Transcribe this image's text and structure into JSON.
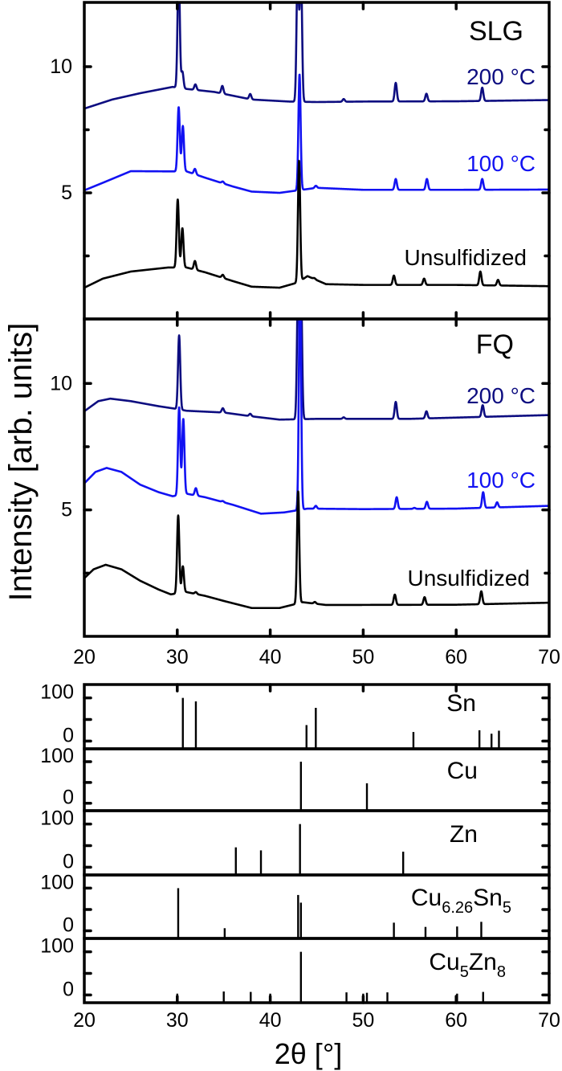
{
  "chart_data": {
    "type": "line",
    "xlabel": "2θ [°]",
    "ylabel": "Intensity [arb. units]",
    "xlim": [
      20,
      70
    ],
    "x_ticks": [
      "20",
      "30",
      "40",
      "50",
      "60",
      "70"
    ],
    "grid": false,
    "panels": [
      {
        "label": "SLG",
        "ylim": [
          0,
          12.55
        ],
        "y_ticks": [
          "5",
          "10"
        ],
        "series": [
          {
            "name": "200 °C",
            "color": "#0d0d80",
            "baseline": [
              [
                20,
                8.34
              ],
              [
                23,
                8.7
              ],
              [
                26,
                8.95
              ],
              [
                29.5,
                9.2
              ],
              [
                31,
                9.12
              ],
              [
                34,
                9.0
              ],
              [
                36,
                8.85
              ],
              [
                38,
                8.7
              ],
              [
                42,
                8.62
              ],
              [
                45,
                8.6
              ],
              [
                50,
                8.62
              ],
              [
                60,
                8.63
              ],
              [
                70,
                8.68
              ]
            ],
            "peaks": [
              [
                30.15,
                14
              ],
              [
                30.55,
                9.8
              ],
              [
                31.95,
                9.3
              ],
              [
                34.85,
                9.24
              ],
              [
                37.85,
                8.92
              ],
              [
                42.95,
                14
              ],
              [
                43.3,
                14
              ],
              [
                47.9,
                8.72
              ],
              [
                53.5,
                9.36
              ],
              [
                56.8,
                8.93
              ],
              [
                62.8,
                9.17
              ]
            ]
          },
          {
            "name": "100 °C",
            "color": "#1212f2",
            "baseline": [
              [
                20,
                5.1
              ],
              [
                22,
                5.4
              ],
              [
                25,
                5.86
              ],
              [
                29.5,
                5.85
              ],
              [
                31,
                5.85
              ],
              [
                33,
                5.6
              ],
              [
                36,
                5.25
              ],
              [
                38,
                5.05
              ],
              [
                41,
                5.0
              ],
              [
                43,
                5.1
              ],
              [
                45,
                5.2
              ],
              [
                50,
                5.12
              ],
              [
                60,
                5.12
              ],
              [
                70,
                5.13
              ]
            ],
            "peaks": [
              [
                30.15,
                8.4
              ],
              [
                30.6,
                7.65
              ],
              [
                31.9,
                5.95
              ],
              [
                34.9,
                5.45
              ],
              [
                43.15,
                9.7
              ],
              [
                44.9,
                5.28
              ],
              [
                53.5,
                5.55
              ],
              [
                56.85,
                5.55
              ],
              [
                62.8,
                5.55
              ]
            ]
          },
          {
            "name": "Unsulfidized",
            "color": "#000000",
            "baseline": [
              [
                20,
                1.24
              ],
              [
                22,
                1.6
              ],
              [
                25,
                1.88
              ],
              [
                29,
                2.04
              ],
              [
                31,
                2.04
              ],
              [
                33,
                1.85
              ],
              [
                36,
                1.5
              ],
              [
                38,
                1.28
              ],
              [
                41,
                1.24
              ],
              [
                43,
                1.45
              ],
              [
                44,
                1.7
              ],
              [
                46,
                1.38
              ],
              [
                50,
                1.35
              ],
              [
                60,
                1.35
              ],
              [
                70,
                1.3
              ]
            ],
            "peaks": [
              [
                30.05,
                4.74
              ],
              [
                30.55,
                3.6
              ],
              [
                31.9,
                2.3
              ],
              [
                34.9,
                1.75
              ],
              [
                43.1,
                6.27
              ],
              [
                44.75,
                1.62
              ],
              [
                53.3,
                1.72
              ],
              [
                56.55,
                1.6
              ],
              [
                62.6,
                1.88
              ],
              [
                64.5,
                1.55
              ]
            ]
          }
        ]
      },
      {
        "label": "FQ",
        "ylim": [
          0,
          12.55
        ],
        "y_ticks": [
          "5",
          "10"
        ],
        "series": [
          {
            "name": "200 °C",
            "color": "#0d0d80",
            "baseline": [
              [
                20,
                8.9
              ],
              [
                21.5,
                9.3
              ],
              [
                22.8,
                9.4
              ],
              [
                25,
                9.3
              ],
              [
                28,
                9.1
              ],
              [
                29.8,
                9.0
              ],
              [
                31,
                8.92
              ],
              [
                35,
                8.85
              ],
              [
                38,
                8.7
              ],
              [
                41,
                8.57
              ],
              [
                45,
                8.6
              ],
              [
                55,
                8.6
              ],
              [
                70,
                8.75
              ]
            ],
            "peaks": [
              [
                30.2,
                11.9
              ],
              [
                34.9,
                9.02
              ],
              [
                37.85,
                8.8
              ],
              [
                43.0,
                14
              ],
              [
                43.3,
                14
              ],
              [
                47.9,
                8.66
              ],
              [
                53.5,
                9.27
              ],
              [
                56.8,
                8.9
              ],
              [
                62.85,
                9.14
              ]
            ]
          },
          {
            "name": "100 °C",
            "color": "#1212f2",
            "baseline": [
              [
                20,
                6.05
              ],
              [
                21.2,
                6.5
              ],
              [
                22.4,
                6.66
              ],
              [
                24,
                6.5
              ],
              [
                26,
                6.0
              ],
              [
                28,
                5.7
              ],
              [
                29.5,
                5.54
              ],
              [
                31,
                5.64
              ],
              [
                33,
                5.5
              ],
              [
                36,
                5.2
              ],
              [
                39,
                4.85
              ],
              [
                41.5,
                4.9
              ],
              [
                44,
                5.05
              ],
              [
                50,
                5.03
              ],
              [
                60,
                5.05
              ],
              [
                70,
                5.16
              ]
            ],
            "peaks": [
              [
                30.2,
                9.05
              ],
              [
                30.65,
                8.6
              ],
              [
                32.0,
                5.86
              ],
              [
                34.9,
                5.35
              ],
              [
                43.2,
                14
              ],
              [
                44.9,
                5.16
              ],
              [
                53.6,
                5.5
              ],
              [
                55.5,
                5.08
              ],
              [
                56.85,
                5.32
              ],
              [
                62.9,
                5.7
              ],
              [
                64.4,
                5.3
              ]
            ]
          },
          {
            "name": "Unsulfidized",
            "color": "#000000",
            "baseline": [
              [
                20,
                2.3
              ],
              [
                21,
                2.65
              ],
              [
                22.3,
                2.83
              ],
              [
                24,
                2.65
              ],
              [
                26,
                2.2
              ],
              [
                28,
                1.85
              ],
              [
                29.3,
                1.66
              ],
              [
                31,
                1.75
              ],
              [
                33,
                1.6
              ],
              [
                35,
                1.4
              ],
              [
                38,
                1.12
              ],
              [
                41,
                1.12
              ],
              [
                43.5,
                1.35
              ],
              [
                46,
                1.24
              ],
              [
                60,
                1.25
              ],
              [
                70,
                1.33
              ]
            ],
            "peaks": [
              [
                30.1,
                4.78
              ],
              [
                30.6,
                2.77
              ],
              [
                32.0,
                1.75
              ],
              [
                43.0,
                5.73
              ],
              [
                44.8,
                1.36
              ],
              [
                53.4,
                1.65
              ],
              [
                56.6,
                1.55
              ],
              [
                62.7,
                1.78
              ]
            ]
          }
        ]
      }
    ],
    "reference_patterns": {
      "type": "bar",
      "ylim": [
        -18,
        131
      ],
      "y_ticks": [
        "100",
        "0"
      ],
      "patterns": [
        {
          "label_parts": [
            {
              "text": "Sn",
              "sub": false
            }
          ],
          "sticks": [
            [
              30.6,
              100
            ],
            [
              32.0,
              92
            ],
            [
              43.9,
              37
            ],
            [
              44.9,
              77
            ],
            [
              55.4,
              21
            ],
            [
              62.5,
              25
            ],
            [
              63.8,
              17
            ],
            [
              64.6,
              24
            ]
          ]
        },
        {
          "label_parts": [
            {
              "text": "Cu",
              "sub": false
            }
          ],
          "sticks": [
            [
              43.3,
              100
            ],
            [
              50.4,
              48
            ]
          ]
        },
        {
          "label_parts": [
            {
              "text": "Zn",
              "sub": false
            }
          ],
          "sticks": [
            [
              36.3,
              46
            ],
            [
              39.0,
              39
            ],
            [
              43.2,
              100
            ],
            [
              54.3,
              36
            ]
          ]
        },
        {
          "label_parts": [
            {
              "text": "Cu",
              "sub": false
            },
            {
              "text": "6.26",
              "sub": true
            },
            {
              "text": "Sn",
              "sub": false
            },
            {
              "text": "5",
              "sub": true
            }
          ],
          "sticks": [
            [
              30.1,
              100
            ],
            [
              35.1,
              6
            ],
            [
              43.0,
              84
            ],
            [
              43.3,
              66
            ],
            [
              53.3,
              19
            ],
            [
              56.7,
              9
            ],
            [
              60.1,
              10
            ],
            [
              62.7,
              21
            ]
          ]
        },
        {
          "label_parts": [
            {
              "text": "Cu",
              "sub": false
            },
            {
              "text": "5",
              "sub": true
            },
            {
              "text": "Zn",
              "sub": false
            },
            {
              "text": "8",
              "sub": true
            }
          ],
          "sticks": [
            [
              30.0,
              3
            ],
            [
              35.0,
              8
            ],
            [
              37.9,
              7
            ],
            [
              40.0,
              3
            ],
            [
              43.3,
              100
            ],
            [
              48.2,
              6
            ],
            [
              50.0,
              3
            ],
            [
              50.4,
              5
            ],
            [
              52.6,
              6
            ],
            [
              60.1,
              3
            ],
            [
              62.9,
              7
            ]
          ]
        }
      ]
    }
  }
}
